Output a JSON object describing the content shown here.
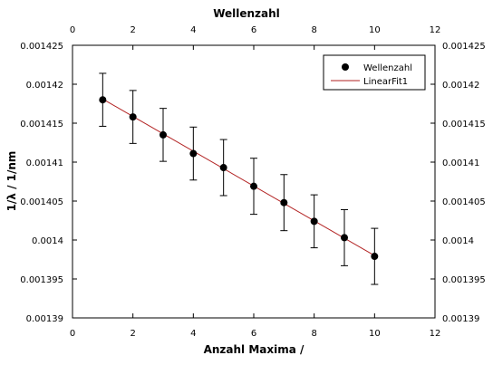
{
  "chart_data": {
    "type": "scatter",
    "title": "Wellenzahl",
    "xlabel": "Anzahl Maxima /",
    "ylabel": "1/λ / 1/nm",
    "xlim": [
      0,
      12
    ],
    "ylim": [
      0.00139,
      0.001425
    ],
    "x_ticks": [
      0,
      2,
      4,
      6,
      8,
      10,
      12
    ],
    "x_tick_labels": [
      "0",
      "2",
      "4",
      "6",
      "8",
      "10",
      "12"
    ],
    "y_ticks": [
      0.00139,
      0.001395,
      0.0014,
      0.001405,
      0.00141,
      0.001415,
      0.00142,
      0.001425
    ],
    "y_tick_labels": [
      "0.00139",
      "0.001395",
      "0.0014",
      "0.001405",
      "0.00141",
      "0.001415",
      "0.00142",
      "0.001425"
    ],
    "grid": false,
    "legend_position": "top-right",
    "legend": [
      "Wellenzahl",
      "LinearFit1"
    ],
    "colors": {
      "points": "#000000",
      "fit": "#b22222",
      "frame": "#000000"
    },
    "series": [
      {
        "name": "Wellenzahl",
        "kind": "points-with-error-bars",
        "x": [
          1,
          2,
          3,
          4,
          5,
          6,
          7,
          8,
          9,
          10
        ],
        "y": [
          0.001418,
          0.0014158,
          0.0014135,
          0.0014111,
          0.0014093,
          0.0014069,
          0.0014048,
          0.0014024,
          0.0014003,
          0.0013979
        ],
        "error": [
          3.4e-06,
          3.4e-06,
          3.4e-06,
          3.4e-06,
          3.6e-06,
          3.6e-06,
          3.6e-06,
          3.4e-06,
          3.6e-06,
          3.6e-06
        ]
      },
      {
        "name": "LinearFit1",
        "kind": "line",
        "x": [
          1,
          10
        ],
        "y": [
          0.0014181,
          0.001398
        ]
      }
    ]
  }
}
